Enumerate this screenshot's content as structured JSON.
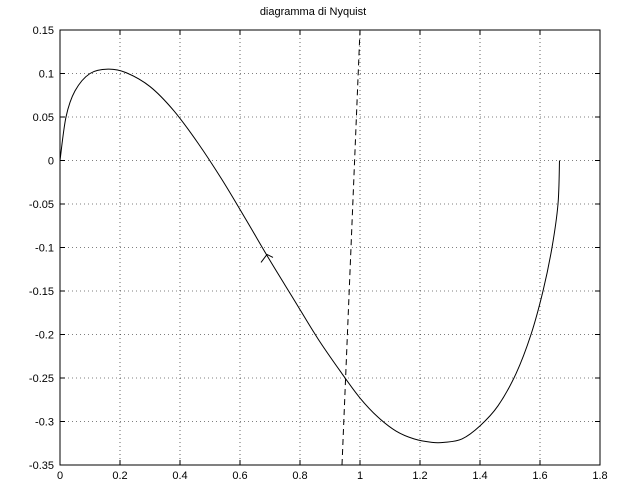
{
  "chart_data": {
    "type": "line",
    "title": "diagramma di Nyquist",
    "xlabel": "",
    "ylabel": "",
    "xlim": [
      0,
      1.8
    ],
    "ylim": [
      -0.35,
      0.15
    ],
    "grid": true,
    "x_ticks": [
      "0",
      "0.2",
      "0.4",
      "0.6",
      "0.8",
      "1",
      "1.2",
      "1.4",
      "1.6",
      "1.8"
    ],
    "y_ticks": [
      "0.15",
      "0.1",
      "0.05",
      "0",
      "-0.05",
      "-0.1",
      "-0.15",
      "-0.2",
      "-0.25",
      "-0.3",
      "-0.35"
    ],
    "series": [
      {
        "style": "solid",
        "x": [
          0.0,
          0.02,
          0.05,
          0.1,
          0.16,
          0.22,
          0.3,
          0.38,
          0.46,
          0.54,
          0.62,
          0.7,
          0.78,
          0.86,
          0.94,
          1.0,
          1.06,
          1.12,
          1.18,
          1.24,
          1.28,
          1.34,
          1.4,
          1.46,
          1.52,
          1.57,
          1.61,
          1.64,
          1.66,
          1.665
        ],
        "y": [
          0.0,
          0.05,
          0.08,
          0.1,
          0.105,
          0.101,
          0.085,
          0.057,
          0.02,
          -0.022,
          -0.068,
          -0.115,
          -0.16,
          -0.205,
          -0.245,
          -0.273,
          -0.295,
          -0.311,
          -0.32,
          -0.324,
          -0.324,
          -0.32,
          -0.305,
          -0.282,
          -0.245,
          -0.2,
          -0.15,
          -0.1,
          -0.05,
          0.0
        ]
      },
      {
        "style": "dashed",
        "x": [
          0.94,
          1.0
        ],
        "y": [
          -0.35,
          0.15
        ]
      }
    ],
    "annotations": [
      {
        "type": "direction-arrow",
        "x": 0.69,
        "y": -0.108,
        "direction": "up-left"
      }
    ]
  }
}
